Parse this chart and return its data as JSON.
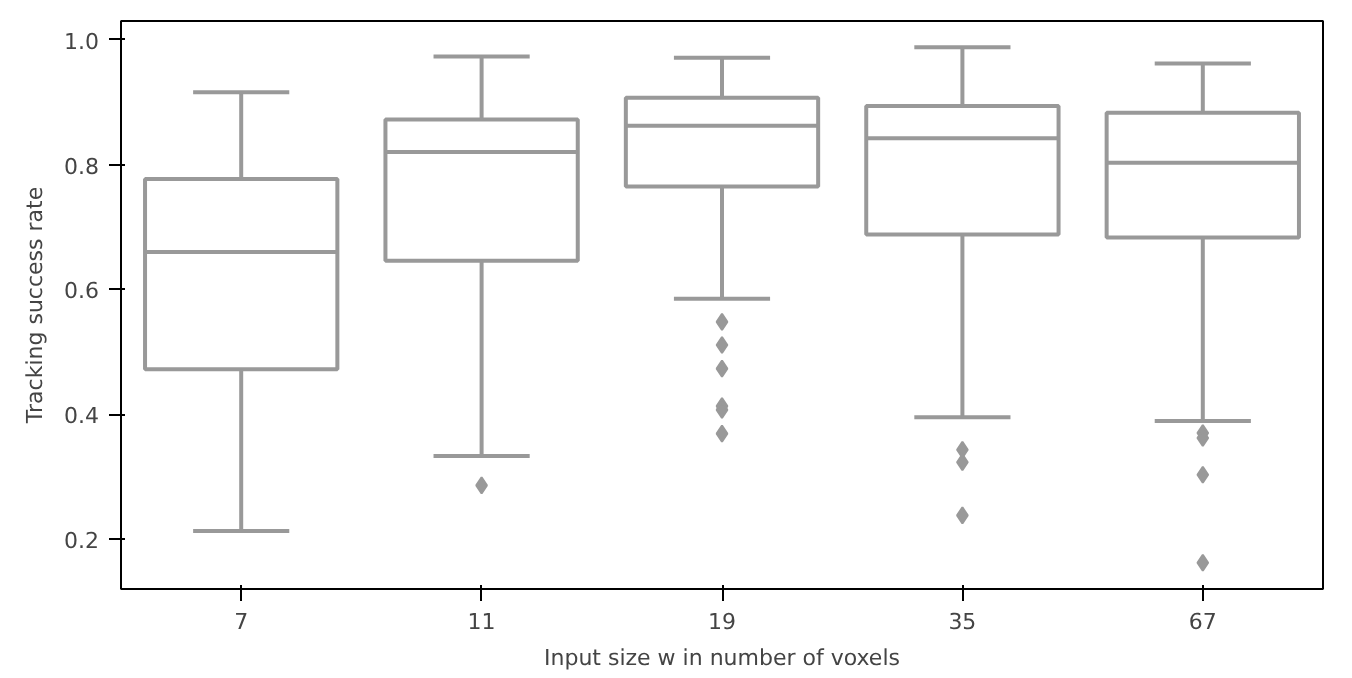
{
  "chart_data": {
    "type": "box",
    "xlabel": "Input size w in number of voxels",
    "ylabel": "Tracking success rate",
    "categories": [
      "7",
      "11",
      "19",
      "35",
      "67"
    ],
    "color": "#999999",
    "marker": "diamond",
    "grid": false,
    "ylim": [
      0.12,
      1.03
    ],
    "yticks": [
      {
        "value": 0.2,
        "label": "0.2"
      },
      {
        "value": 0.4,
        "label": "0.4"
      },
      {
        "value": 0.6,
        "label": "0.6"
      },
      {
        "value": 0.8,
        "label": "0.8"
      },
      {
        "value": 1.0,
        "label": "1.0"
      }
    ],
    "boxes": [
      {
        "low": 0.213,
        "q1": 0.472,
        "median": 0.66,
        "q3": 0.777,
        "high": 0.916
      },
      {
        "low": 0.333,
        "q1": 0.646,
        "median": 0.82,
        "q3": 0.872,
        "high": 0.973,
        "outliers": [
          0.286
        ]
      },
      {
        "low": 0.585,
        "q1": 0.765,
        "median": 0.862,
        "q3": 0.907,
        "high": 0.971,
        "outliers": [
          0.548,
          0.511,
          0.473,
          0.413,
          0.407,
          0.369
        ]
      },
      {
        "low": 0.395,
        "q1": 0.688,
        "median": 0.842,
        "q3": 0.894,
        "high": 0.988,
        "outliers": [
          0.343,
          0.323,
          0.238
        ]
      },
      {
        "low": 0.389,
        "q1": 0.683,
        "median": 0.803,
        "q3": 0.883,
        "high": 0.962,
        "outliers": [
          0.37,
          0.362,
          0.303,
          0.162
        ]
      }
    ]
  }
}
